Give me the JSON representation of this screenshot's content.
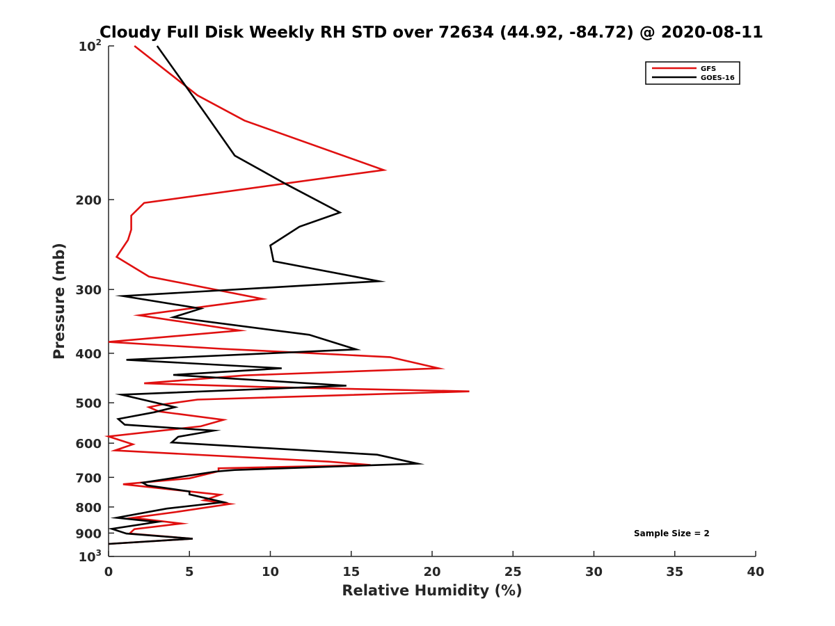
{
  "chart_data": {
    "type": "line",
    "title": "Cloudy Full Disk Weekly RH STD over 72634 (44.92, -84.72) @ 2020-08-11",
    "xlabel": "Relative Humidity (%)",
    "ylabel": "Pressure (mb)",
    "xlim": [
      0,
      40
    ],
    "ylim": [
      100,
      1000
    ],
    "y_scale": "log",
    "y_reversed": true,
    "grid": false,
    "legend_position": "top-right",
    "x_ticks": [
      {
        "value": 0,
        "label": "0"
      },
      {
        "value": 5,
        "label": "5"
      },
      {
        "value": 10,
        "label": "10"
      },
      {
        "value": 15,
        "label": "15"
      },
      {
        "value": 20,
        "label": "20"
      },
      {
        "value": 25,
        "label": "25"
      },
      {
        "value": 30,
        "label": "30"
      },
      {
        "value": 35,
        "label": "35"
      },
      {
        "value": 40,
        "label": "40"
      }
    ],
    "y_ticks": [
      {
        "value": 100,
        "base": "10",
        "exp": "2"
      },
      {
        "value": 200,
        "label": "200"
      },
      {
        "value": 300,
        "label": "300"
      },
      {
        "value": 400,
        "label": "400"
      },
      {
        "value": 500,
        "label": "500"
      },
      {
        "value": 600,
        "label": "600"
      },
      {
        "value": 700,
        "label": "700"
      },
      {
        "value": 800,
        "label": "800"
      },
      {
        "value": 900,
        "label": "900"
      },
      {
        "value": 1000,
        "base": "10",
        "exp": "3"
      }
    ],
    "series": [
      {
        "name": "GFS",
        "color": "#e01010",
        "points": [
          [
            1.6,
            100
          ],
          [
            5.5,
            125
          ],
          [
            8.4,
            140
          ],
          [
            17.0,
            175
          ],
          [
            2.2,
            203
          ],
          [
            1.4,
            215
          ],
          [
            1.4,
            229
          ],
          [
            1.2,
            240
          ],
          [
            0.5,
            259
          ],
          [
            2.5,
            283
          ],
          [
            9.5,
            313
          ],
          [
            1.9,
            337
          ],
          [
            8.1,
            361
          ],
          [
            0.0,
            380
          ],
          [
            7.0,
            392
          ],
          [
            17.4,
            407
          ],
          [
            20.4,
            428
          ],
          [
            8.4,
            442
          ],
          [
            2.2,
            458
          ],
          [
            10.0,
            466
          ],
          [
            22.3,
            475
          ],
          [
            5.5,
            493
          ],
          [
            3.3,
            504
          ],
          [
            2.5,
            510
          ],
          [
            3.1,
            520
          ],
          [
            7.1,
            540
          ],
          [
            5.7,
            556
          ],
          [
            0.0,
            582
          ],
          [
            1.5,
            603
          ],
          [
            0.4,
            620
          ],
          [
            13.6,
            652
          ],
          [
            16.2,
            662
          ],
          [
            6.8,
            672
          ],
          [
            6.8,
            681
          ],
          [
            5.0,
            703
          ],
          [
            0.9,
            722
          ],
          [
            6.9,
            757
          ],
          [
            5.9,
            776
          ],
          [
            7.5,
            789
          ],
          [
            4.2,
            818
          ],
          [
            1.5,
            840
          ],
          [
            4.5,
            862
          ],
          [
            1.6,
            884
          ],
          [
            1.3,
            902
          ],
          [
            5.2,
            923
          ],
          [
            0.0,
            945
          ]
        ]
      },
      {
        "name": "GOES-16",
        "color": "#000000",
        "points": [
          [
            3.0,
            100
          ],
          [
            6.0,
            136
          ],
          [
            7.8,
            164
          ],
          [
            10.9,
            186
          ],
          [
            14.3,
            212
          ],
          [
            11.8,
            226
          ],
          [
            10.0,
            246
          ],
          [
            10.2,
            264
          ],
          [
            16.7,
            289
          ],
          [
            0.9,
            309
          ],
          [
            5.7,
            327
          ],
          [
            4.0,
            340
          ],
          [
            12.4,
            368
          ],
          [
            15.3,
            393
          ],
          [
            1.1,
            412
          ],
          [
            10.7,
            428
          ],
          [
            4.0,
            441
          ],
          [
            14.7,
            463
          ],
          [
            0.8,
            482
          ],
          [
            4.1,
            510
          ],
          [
            2.8,
            522
          ],
          [
            0.6,
            538
          ],
          [
            1.0,
            552
          ],
          [
            6.5,
            567
          ],
          [
            4.3,
            583
          ],
          [
            3.9,
            598
          ],
          [
            16.6,
            632
          ],
          [
            19.1,
            658
          ],
          [
            7.8,
            677
          ],
          [
            6.6,
            682
          ],
          [
            2.1,
            717
          ],
          [
            2.4,
            726
          ],
          [
            5.0,
            746
          ],
          [
            5.0,
            756
          ],
          [
            7.1,
            783
          ],
          [
            3.6,
            806
          ],
          [
            0.5,
            840
          ],
          [
            3.0,
            856
          ],
          [
            0.2,
            883
          ],
          [
            1.1,
            902
          ],
          [
            5.2,
            923
          ],
          [
            0.0,
            945
          ]
        ]
      }
    ],
    "annotations": [
      {
        "text": "Sample Size = 2"
      }
    ]
  }
}
